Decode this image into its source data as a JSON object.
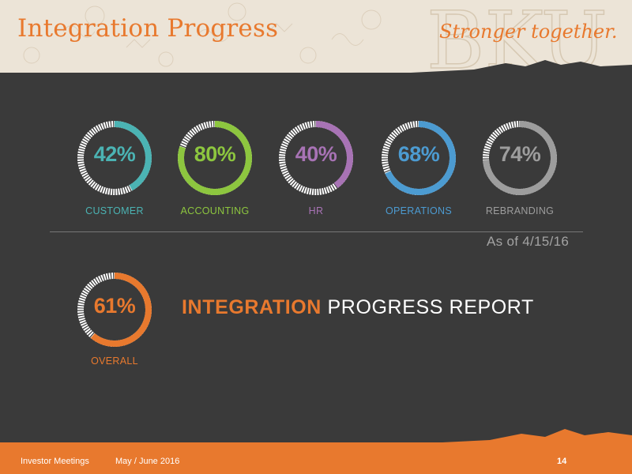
{
  "header": {
    "title": "Integration Progress",
    "tagline": "Stronger together."
  },
  "colors": {
    "accent": "#e8792e",
    "background": "#3a3a3a",
    "ring_track": "#ffffff"
  },
  "chart_data": {
    "type": "donut",
    "as_of": "As of 4/15/16",
    "items": [
      {
        "label": "CUSTOMER",
        "value": 42,
        "display": "42%",
        "color": "#4bb3b3"
      },
      {
        "label": "ACCOUNTING",
        "value": 80,
        "display": "80%",
        "color": "#8dc63f"
      },
      {
        "label": "HR",
        "value": 40,
        "display": "40%",
        "color": "#a873b5"
      },
      {
        "label": "OPERATIONS",
        "value": 68,
        "display": "68%",
        "color": "#4c9bd1"
      },
      {
        "label": "REBRANDING",
        "value": 74,
        "display": "74%",
        "color": "#9d9d9d"
      }
    ],
    "overall": {
      "label": "OVERALL",
      "value": 61,
      "display": "61%",
      "color": "#e8792e"
    }
  },
  "report": {
    "bold": "INTEGRATION",
    "rest": " PROGRESS REPORT"
  },
  "footer": {
    "left": "Investor Meetings",
    "date": "May / June 2016",
    "page": "14"
  }
}
